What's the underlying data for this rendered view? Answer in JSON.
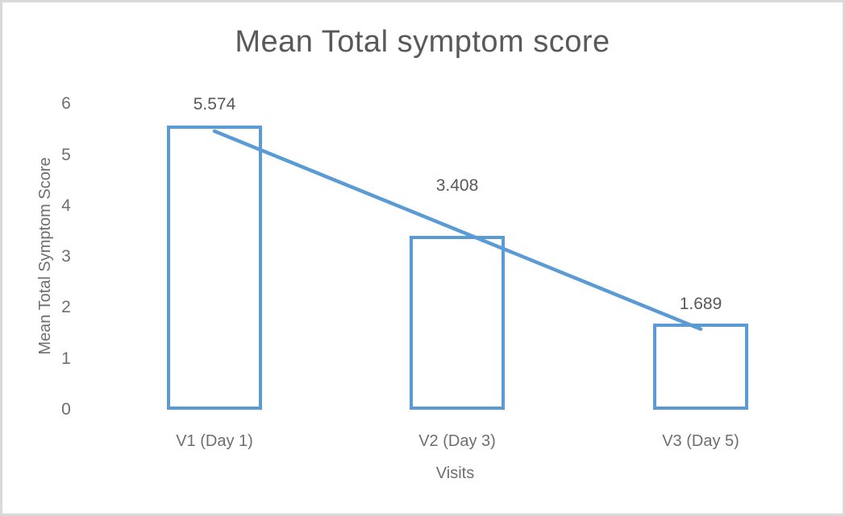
{
  "chart_data": {
    "type": "bar",
    "title": "Mean Total symptom score",
    "xlabel": "Visits",
    "ylabel": "Mean Total Symptom Score",
    "categories": [
      "V1 (Day 1)",
      "V2 (Day 3)",
      "V3 (Day 5)"
    ],
    "values": [
      5.574,
      3.408,
      1.689
    ],
    "data_labels": [
      "5.574",
      "3.408",
      "1.689"
    ],
    "ylim": [
      0,
      6
    ],
    "yticks": [
      0,
      1,
      2,
      3,
      4,
      5,
      6
    ],
    "grid": false,
    "legend": "none",
    "bar_fill": "#FFFFFF",
    "bar_border_color": "#5B9BD5",
    "trendline": {
      "type": "linear",
      "color": "#5B9BD5",
      "description": "straight linear trendline from top of first bar down through top of last bar"
    },
    "colors": {
      "series_accent": "#5B9BD5",
      "title_text": "#595959",
      "axis_text": "#6E6E6E",
      "frame_border": "#D9D9D9",
      "background": "#FFFFFF"
    }
  }
}
